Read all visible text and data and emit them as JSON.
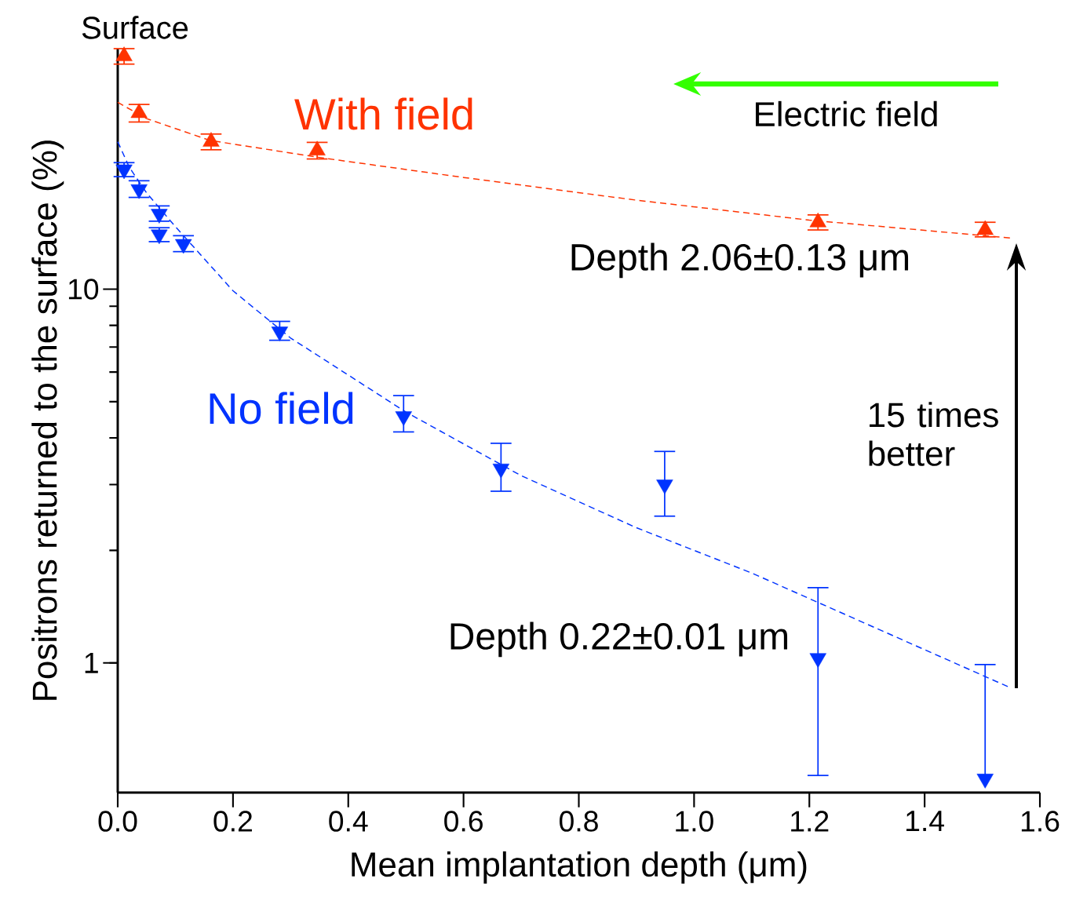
{
  "chart_data": {
    "type": "scatter",
    "xlabel": "Mean implantation depth (μm)",
    "ylabel": "Positrons returned to the surface (%)",
    "log": "y",
    "xlim": [
      0,
      1.6
    ],
    "xticks": [
      {
        "value": 0,
        "label": "0.0"
      },
      0.2,
      0.4,
      0.6,
      0.8,
      {
        "value": 1,
        "label": "1.0"
      },
      1.2,
      1.4,
      1.6
    ],
    "ylim": [
      0.45,
      44
    ],
    "yticks": [
      1,
      10
    ],
    "grid": false,
    "series": [
      {
        "name": "With field",
        "color": "#ff3300",
        "marker": "triangle",
        "x": [
          0.011,
          0.037,
          0.162,
          0.346,
          1.215,
          1.505
        ],
        "values": [
          42,
          29.6,
          24.8,
          23.5,
          15.1,
          14.4
        ],
        "errors": [
          [
            40,
            44
          ],
          [
            28,
            31.2
          ],
          [
            23.6,
            26
          ],
          [
            22.3,
            24.7
          ],
          [
            14.4,
            15.8
          ],
          [
            13.8,
            15.1
          ]
        ]
      },
      {
        "name": "No field",
        "color": "#0033ff",
        "marker": "triangle-down",
        "x": [
          0.011,
          0.037,
          0.072,
          0.072,
          0.114,
          0.281,
          0.496,
          0.665,
          0.949,
          1.215,
          1.505
        ],
        "values": [
          20.9,
          18.5,
          15.9,
          14.0,
          13.2,
          7.7,
          4.57,
          3.31,
          3.0,
          1.03,
          0.49
        ],
        "errors": [
          [
            20,
            21.8
          ],
          [
            17.6,
            19.5
          ],
          [
            15.2,
            16.7
          ],
          [
            13.4,
            14.6
          ],
          [
            12.6,
            13.9
          ],
          [
            7.3,
            8.2
          ],
          [
            4.15,
            5.19
          ],
          [
            2.88,
            3.87
          ],
          [
            2.47,
            3.68
          ],
          [
            0.5,
            1.59
          ],
          [
            0.49,
            0.99
          ]
        ]
      },
      {
        "type": "line",
        "color": "#ff3300",
        "line_style": "dashed",
        "marker": "none",
        "x": [
          0,
          0.05,
          0.16,
          0.35,
          0.6,
          0.9,
          1.2,
          1.55
        ],
        "values": [
          31.6,
          28.6,
          25.0,
          22.5,
          19.9,
          17.3,
          15.3,
          13.7
        ]
      },
      {
        "type": "line",
        "color": "#0033ff",
        "line_style": "dashed",
        "marker": "none",
        "x": [
          0,
          0.02,
          0.05,
          0.1,
          0.2,
          0.3,
          0.5,
          0.7,
          0.9,
          1.1,
          1.3,
          1.55
        ],
        "values": [
          24.8,
          21.2,
          18.1,
          14.7,
          9.9,
          7.4,
          4.69,
          3.17,
          2.3,
          1.74,
          1.27,
          0.857
        ]
      }
    ],
    "annotations": [
      "Surface",
      "Electric field",
      "Depth 2.06±0.13 μm",
      "Depth 0.22±0.01 μm",
      "15 times better"
    ]
  }
}
